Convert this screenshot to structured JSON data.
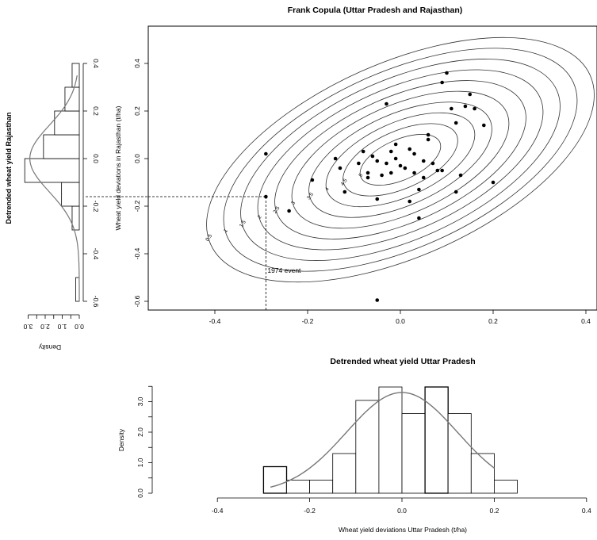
{
  "chart_data": [
    {
      "type": "scatter",
      "title": "Frank Copula (Uttar Pradesh and Rajasthan)",
      "xlabel": "",
      "ylabel": "Wheat yield deviations in Rajasthan (t/ha)",
      "xlim": [
        -0.55,
        0.43
      ],
      "ylim": [
        -0.64,
        0.47
      ],
      "x_ticks": [
        "-0.4",
        "-0.2",
        "0.0",
        "0.2",
        "0.4"
      ],
      "y_ticks": [
        "-0.6",
        "-0.4",
        "-0.2",
        "0.0",
        "0.2",
        "0.4"
      ],
      "contour_levels": [
        "0.5",
        "1",
        "1.5",
        "2",
        "2.5",
        "3",
        "3.5",
        "4",
        "4.5",
        "5"
      ],
      "annotation": {
        "text": "1974 event",
        "x": -0.29,
        "y": -0.16
      },
      "points": [
        [
          -0.29,
          -0.16
        ],
        [
          -0.05,
          -0.595
        ],
        [
          -0.24,
          -0.22
        ],
        [
          -0.29,
          0.02
        ],
        [
          -0.19,
          -0.09
        ],
        [
          -0.14,
          0.0
        ],
        [
          -0.13,
          -0.04
        ],
        [
          -0.12,
          -0.14
        ],
        [
          -0.09,
          -0.02
        ],
        [
          -0.08,
          0.03
        ],
        [
          -0.07,
          -0.06
        ],
        [
          -0.07,
          -0.08
        ],
        [
          -0.05,
          -0.01
        ],
        [
          -0.04,
          -0.07
        ],
        [
          -0.03,
          -0.02
        ],
        [
          -0.03,
          0.23
        ],
        [
          -0.02,
          0.03
        ],
        [
          -0.02,
          -0.06
        ],
        [
          -0.01,
          0.06
        ],
        [
          -0.01,
          0.0
        ],
        [
          0.0,
          -0.03
        ],
        [
          0.01,
          -0.04
        ],
        [
          0.02,
          0.04
        ],
        [
          0.03,
          0.02
        ],
        [
          0.03,
          -0.06
        ],
        [
          0.04,
          -0.13
        ],
        [
          0.05,
          -0.08
        ],
        [
          0.05,
          -0.01
        ],
        [
          0.06,
          0.1
        ],
        [
          0.06,
          0.08
        ],
        [
          0.07,
          -0.02
        ],
        [
          0.08,
          -0.05
        ],
        [
          0.09,
          -0.05
        ],
        [
          0.09,
          0.32
        ],
        [
          0.1,
          0.36
        ],
        [
          0.11,
          0.21
        ],
        [
          0.12,
          0.15
        ],
        [
          0.12,
          -0.14
        ],
        [
          0.13,
          -0.07
        ],
        [
          0.14,
          0.22
        ],
        [
          0.15,
          0.27
        ],
        [
          0.16,
          0.21
        ],
        [
          0.18,
          0.14
        ],
        [
          0.2,
          -0.1
        ],
        [
          -0.05,
          -0.17
        ],
        [
          0.02,
          -0.18
        ],
        [
          0.04,
          -0.25
        ],
        [
          -0.06,
          0.01
        ]
      ]
    },
    {
      "type": "bar",
      "title": "Detrended wheat yield Uttar Pradesh",
      "xlabel": "Wheat yield deviations Uttar Pradesh (t/ha)",
      "ylabel": "Density",
      "xlim": [
        -0.4,
        0.4
      ],
      "ylim": [
        0,
        3.5
      ],
      "x_ticks": [
        "-0.4",
        "-0.2",
        "0.0",
        "0.2",
        "0.4"
      ],
      "y_ticks": [
        "0.0",
        "1.0",
        "2.0",
        "3.0"
      ],
      "bin_edges": [
        -0.3,
        -0.25,
        -0.2,
        -0.15,
        -0.1,
        -0.05,
        0.0,
        0.05,
        0.1,
        0.15,
        0.2,
        0.25
      ],
      "values": [
        0.87,
        0.43,
        0.43,
        1.3,
        3.04,
        3.48,
        2.61,
        3.48,
        2.61,
        1.3,
        0.43
      ],
      "density_curve": {
        "mean": 0.0,
        "sd": 0.12
      }
    },
    {
      "type": "bar",
      "title": "",
      "xlabel": "Density",
      "ylabel": "Detrended wheat yield Rajasthan",
      "orientation": "horizontal",
      "xlim": [
        0,
        3.2
      ],
      "x_reversed": true,
      "ylim": [
        -0.64,
        0.47
      ],
      "x_ticks": [
        "0.0",
        "1.0",
        "2.0",
        "3.0"
      ],
      "y_ticks": [
        "-0.6",
        "-0.4",
        "-0.2",
        "0.0",
        "0.2",
        "0.4"
      ],
      "bin_edges": [
        -0.6,
        -0.5,
        -0.4,
        -0.3,
        -0.2,
        -0.1,
        0.0,
        0.1,
        0.2,
        0.3,
        0.4
      ],
      "values": [
        0.21,
        0.0,
        0.0,
        0.42,
        1.04,
        3.2,
        2.1,
        1.45,
        0.84,
        0.42
      ],
      "density_curve": {
        "mean": 0.0,
        "sd": 0.14
      }
    }
  ]
}
